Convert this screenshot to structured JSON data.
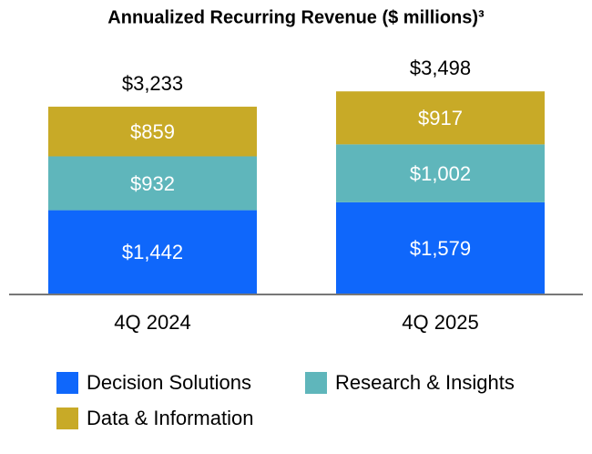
{
  "chart_data": {
    "type": "stacked_bar",
    "title": "Annualized Recurring Revenue ($ millions)³",
    "categories": [
      "4Q 2024",
      "4Q 2025"
    ],
    "series": [
      {
        "name": "Decision Solutions",
        "color": "#0f67fb",
        "values": [
          1442,
          1579
        ],
        "value_labels": [
          "$1,442",
          "$1,579"
        ]
      },
      {
        "name": "Research & Insights",
        "color": "#5fb6bb",
        "values": [
          932,
          1002
        ],
        "value_labels": [
          "$932",
          "$1,002"
        ]
      },
      {
        "name": "Data & Information",
        "color": "#c8aa27",
        "values": [
          859,
          917
        ],
        "value_labels": [
          "$859",
          "$917"
        ]
      }
    ],
    "totals": [
      3233,
      3498
    ],
    "total_labels": [
      "$3,233",
      "$3,498"
    ]
  }
}
